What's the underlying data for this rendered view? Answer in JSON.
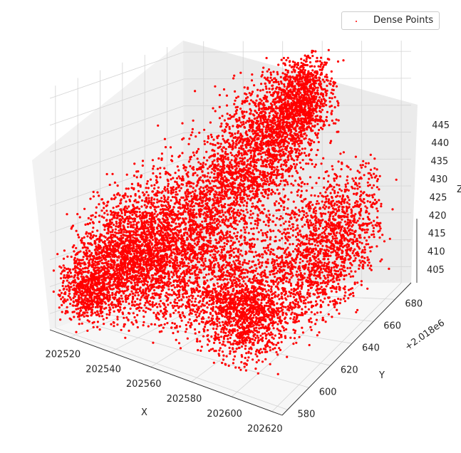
{
  "chart_data": {
    "type": "scatter",
    "projection": "3d",
    "title": "",
    "xlabel": "X",
    "ylabel": "Y",
    "zlabel": "Z",
    "y_offset_label": "+2.018e6",
    "xlim": [
      202510,
      202625
    ],
    "ylim": [
      575,
      695
    ],
    "zlim": [
      402,
      447
    ],
    "x_ticks": [
      "202520",
      "202540",
      "202560",
      "202580",
      "202600",
      "202620"
    ],
    "y_ticks": [
      "580",
      "600",
      "620",
      "640",
      "660",
      "680"
    ],
    "z_ticks": [
      "405",
      "410",
      "415",
      "420",
      "425",
      "430",
      "435",
      "440",
      "445"
    ],
    "x_tick_values": [
      202520,
      202540,
      202560,
      202580,
      202600,
      202620
    ],
    "y_tick_values": [
      580,
      600,
      620,
      640,
      660,
      680
    ],
    "z_tick_values": [
      405,
      410,
      415,
      420,
      425,
      430,
      435,
      440,
      445
    ],
    "grid": true,
    "legend_position": "top-right",
    "series": [
      {
        "name": "Dense Points",
        "color": "#ff0000",
        "marker": "dot",
        "clusters": [
          {
            "x": 202520,
            "y": 590,
            "z": 410,
            "spread": [
              6,
              12,
              3
            ]
          },
          {
            "x": 202528,
            "y": 610,
            "z": 416,
            "spread": [
              8,
              14,
              4
            ]
          },
          {
            "x": 202540,
            "y": 625,
            "z": 420,
            "spread": [
              10,
              15,
              5
            ]
          },
          {
            "x": 202555,
            "y": 640,
            "z": 424,
            "spread": [
              10,
              15,
              6
            ]
          },
          {
            "x": 202565,
            "y": 655,
            "z": 430,
            "spread": [
              10,
              12,
              6
            ]
          },
          {
            "x": 202575,
            "y": 665,
            "z": 436,
            "spread": [
              8,
              10,
              5
            ]
          },
          {
            "x": 202582,
            "y": 675,
            "z": 440,
            "spread": [
              6,
              8,
              4
            ]
          },
          {
            "x": 202600,
            "y": 640,
            "z": 415,
            "spread": [
              8,
              14,
              6
            ]
          },
          {
            "x": 202610,
            "y": 660,
            "z": 418,
            "spread": [
              6,
              14,
              6
            ]
          },
          {
            "x": 202545,
            "y": 600,
            "z": 415,
            "spread": [
              12,
              10,
              5
            ]
          },
          {
            "x": 202570,
            "y": 620,
            "z": 412,
            "spread": [
              12,
              12,
              5
            ]
          },
          {
            "x": 202590,
            "y": 610,
            "z": 410,
            "spread": [
              8,
              10,
              4
            ]
          }
        ]
      }
    ]
  }
}
